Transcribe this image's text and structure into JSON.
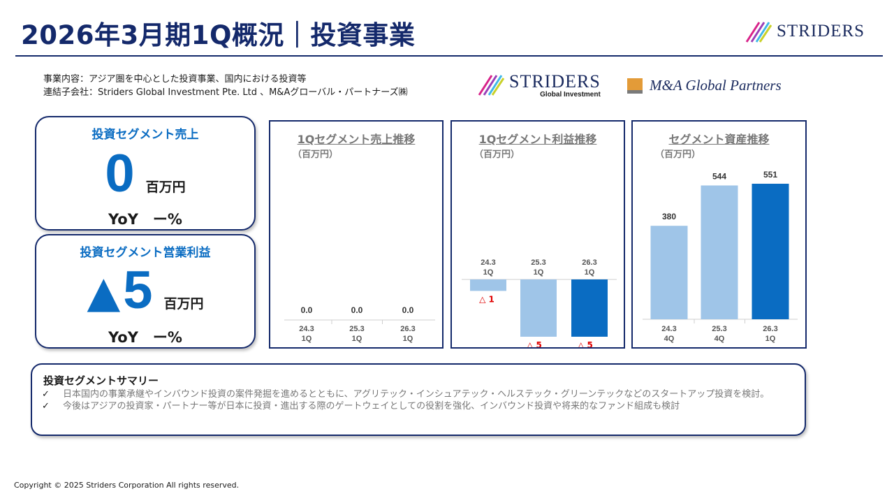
{
  "header": {
    "title": "2026年3月期1Q概況｜投資事業",
    "brand": "STRIDERS"
  },
  "intro": {
    "line1": "事業内容：アジア圏を中心とした投資事業、国内における投資等",
    "line2": "連結子会社：Striders Global Investment Pte. Ltd 、M&Aグローバル・パートナーズ㈱"
  },
  "logos": {
    "sgi_main": "STRIDERS",
    "sgi_sub": "Global Investment",
    "mag": "M&A Global Partners"
  },
  "kpi_sales": {
    "label": "投資セグメント売上",
    "value": "0",
    "unit": "百万円",
    "yoy": "YoY　ー%"
  },
  "kpi_profit": {
    "label": "投資セグメント営業利益",
    "value": "5",
    "negative_mark": "▲",
    "unit": "百万円",
    "yoy": "YoY　ー%"
  },
  "chart_data": [
    {
      "type": "bar",
      "title": "1Qセグメント売上推移",
      "unit_label": "（百万円）",
      "categories": [
        "24.3\n1Q",
        "25.3\n1Q",
        "26.3\n1Q"
      ],
      "values": [
        0.0,
        0.0,
        0.0
      ],
      "value_labels": [
        "0.0",
        "0.0",
        "0.0"
      ],
      "colors": [
        "#9fc5e8",
        "#9fc5e8",
        "#0a6cc2"
      ]
    },
    {
      "type": "bar",
      "title": "1Qセグメント利益推移",
      "unit_label": "（百万円）",
      "categories": [
        "24.3\n1Q",
        "25.3\n1Q",
        "26.3\n1Q"
      ],
      "values": [
        -1,
        -5,
        -5
      ],
      "value_labels": [
        "△ 1",
        "△ 5",
        "△ 5"
      ],
      "colors": [
        "#9fc5e8",
        "#9fc5e8",
        "#0a6cc2"
      ],
      "label_color": "#e00000"
    },
    {
      "type": "bar",
      "title": "セグメント資産推移",
      "unit_label": "（百万円）",
      "categories": [
        "24.3\n4Q",
        "25.3\n4Q",
        "26.3\n1Q"
      ],
      "values": [
        380,
        544,
        551
      ],
      "value_labels": [
        "380",
        "544",
        "551"
      ],
      "colors": [
        "#9fc5e8",
        "#9fc5e8",
        "#0a6cc2"
      ]
    }
  ],
  "summary": {
    "title": "投資セグメントサマリー",
    "check": "✓",
    "items": [
      "日本国内の事業承継やインバウンド投資の案件発掘を進めるとともに、アグリテック・インシュアテック・ヘルステック・グリーンテックなどのスタートアップ投資を検討。",
      "今後はアジアの投資家・パートナー等が日本に投資・進出する際のゲートウェイとしての役割を強化、インバウンド投資や将来的なファンド組成も検討"
    ]
  },
  "footer": {
    "copyright": "Copyright © 2025 Striders Corporation All rights reserved."
  }
}
